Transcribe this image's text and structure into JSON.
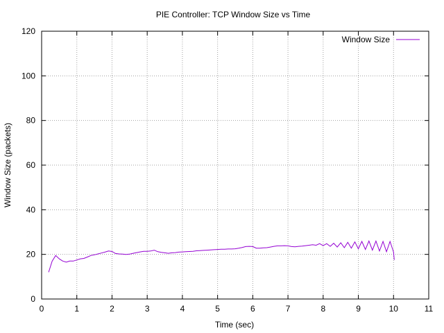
{
  "chart_data": {
    "type": "line",
    "title": "PIE Controller: TCP Window Size vs Time",
    "xlabel": "Time (sec)",
    "ylabel": "Window Size (packets)",
    "xlim": [
      0,
      11
    ],
    "ylim": [
      0,
      120
    ],
    "xticks": [
      0,
      1,
      2,
      3,
      4,
      5,
      6,
      7,
      8,
      9,
      10,
      11
    ],
    "yticks": [
      0,
      20,
      40,
      60,
      80,
      100,
      120
    ],
    "grid": true,
    "legend_position": "top-right",
    "series": [
      {
        "name": "Window Size",
        "color": "#9400d3",
        "x": [
          0.2,
          0.3,
          0.4,
          0.5,
          0.6,
          0.7,
          0.8,
          0.9,
          1.0,
          1.1,
          1.2,
          1.3,
          1.4,
          1.5,
          1.6,
          1.7,
          1.8,
          1.9,
          2.0,
          2.1,
          2.2,
          2.3,
          2.4,
          2.5,
          2.6,
          2.7,
          2.8,
          2.9,
          3.0,
          3.1,
          3.2,
          3.3,
          3.4,
          3.5,
          3.6,
          3.7,
          3.8,
          3.9,
          4.0,
          4.1,
          4.2,
          4.3,
          4.4,
          4.5,
          4.6,
          4.7,
          4.8,
          4.9,
          5.0,
          5.1,
          5.2,
          5.3,
          5.4,
          5.5,
          5.6,
          5.7,
          5.8,
          5.9,
          6.0,
          6.1,
          6.2,
          6.3,
          6.4,
          6.5,
          6.6,
          6.7,
          6.8,
          6.9,
          7.0,
          7.1,
          7.2,
          7.3,
          7.4,
          7.5,
          7.6,
          7.7,
          7.8,
          7.9,
          8.0,
          8.1,
          8.2,
          8.3,
          8.4,
          8.5,
          8.6,
          8.7,
          8.8,
          8.9,
          9.0,
          9.1,
          9.2,
          9.3,
          9.4,
          9.5,
          9.6,
          9.7,
          9.8,
          9.9,
          10.0,
          10.02
        ],
        "y": [
          12,
          17,
          19.5,
          18,
          17,
          16.5,
          17,
          17,
          17.5,
          18,
          18.2,
          18.8,
          19.5,
          19.8,
          20.2,
          20.6,
          21,
          21.5,
          21.3,
          20.4,
          20.2,
          20.1,
          20,
          20.1,
          20.5,
          20.8,
          21.1,
          21.4,
          21.4,
          21.5,
          21.9,
          21.2,
          20.9,
          20.7,
          20.5,
          20.7,
          20.8,
          21,
          21.1,
          21.2,
          21.3,
          21.4,
          21.6,
          21.7,
          21.8,
          21.9,
          22,
          22.1,
          22.2,
          22.3,
          22.3,
          22.4,
          22.4,
          22.5,
          22.8,
          23.1,
          23.5,
          23.6,
          23.5,
          22.8,
          22.8,
          22.9,
          23,
          23.3,
          23.6,
          23.8,
          23.8,
          23.9,
          23.8,
          23.5,
          23.4,
          23.6,
          23.7,
          23.9,
          24.1,
          24.3,
          24.1,
          24.8,
          23.9,
          24.8,
          23.6,
          25,
          23.3,
          25.2,
          23,
          25.4,
          22.8,
          25.6,
          22.5,
          25.8,
          22.2,
          26,
          21.9,
          26,
          21.5,
          25.8,
          21.2,
          25.8,
          21,
          17.5
        ]
      }
    ]
  }
}
